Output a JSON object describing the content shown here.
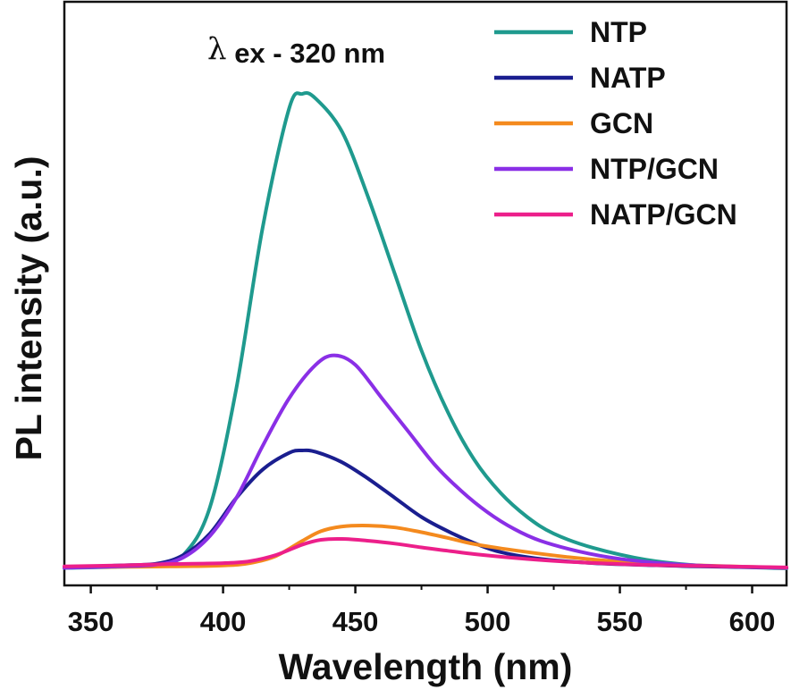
{
  "chart_data": {
    "type": "line",
    "title": "",
    "xlabel": "Wavelength (nm)",
    "ylabel": "PL intensity (a.u.)",
    "xlim": [
      340,
      613
    ],
    "ylim": [
      0,
      1.1
    ],
    "x_ticks": [
      "350",
      "400",
      "450",
      "500",
      "550",
      "600"
    ],
    "y_ticks_shown": false,
    "grid": false,
    "legend_position": "top-right",
    "annotation": {
      "symbol": "λ",
      "text": "ex - 320 nm"
    },
    "series": [
      {
        "name": "NTP",
        "color": "#1f9a8e",
        "x": [
          340,
          360,
          375,
          385,
          395,
          405,
          415,
          425,
          430,
          435,
          445,
          455,
          465,
          475,
          485,
          495,
          505,
          515,
          525,
          540,
          560,
          580,
          613
        ],
        "y": [
          0.003,
          0.005,
          0.009,
          0.03,
          0.13,
          0.38,
          0.72,
          0.97,
          1.0,
          0.99,
          0.92,
          0.78,
          0.62,
          0.46,
          0.33,
          0.23,
          0.16,
          0.11,
          0.075,
          0.045,
          0.02,
          0.008,
          0.002
        ]
      },
      {
        "name": "NATP",
        "color": "#1a1e8f",
        "x": [
          340,
          360,
          375,
          385,
          395,
          405,
          415,
          425,
          430,
          435,
          445,
          455,
          465,
          475,
          485,
          495,
          505,
          520,
          540,
          560,
          580,
          613
        ],
        "y": [
          0.004,
          0.008,
          0.012,
          0.03,
          0.075,
          0.15,
          0.21,
          0.245,
          0.25,
          0.247,
          0.225,
          0.19,
          0.15,
          0.11,
          0.08,
          0.055,
          0.036,
          0.022,
          0.013,
          0.009,
          0.006,
          0.003
        ]
      },
      {
        "name": "GCN",
        "color": "#f48a1e",
        "x": [
          340,
          360,
          380,
          400,
          410,
          420,
          430,
          437,
          445,
          455,
          465,
          475,
          485,
          495,
          510,
          530,
          550,
          570,
          613
        ],
        "y": [
          0.004,
          0.005,
          0.006,
          0.008,
          0.013,
          0.028,
          0.06,
          0.08,
          0.09,
          0.092,
          0.088,
          0.078,
          0.066,
          0.053,
          0.04,
          0.026,
          0.016,
          0.01,
          0.003
        ]
      },
      {
        "name": "NTP/GCN",
        "color": "#8a2fe6",
        "x": [
          340,
          360,
          375,
          385,
          395,
          405,
          415,
          425,
          435,
          442,
          450,
          460,
          470,
          480,
          490,
          500,
          510,
          520,
          535,
          550,
          570,
          590,
          613
        ],
        "y": [
          0.003,
          0.006,
          0.01,
          0.025,
          0.07,
          0.15,
          0.26,
          0.36,
          0.43,
          0.45,
          0.43,
          0.36,
          0.29,
          0.22,
          0.165,
          0.12,
          0.085,
          0.06,
          0.037,
          0.022,
          0.011,
          0.006,
          0.003
        ]
      },
      {
        "name": "NATP/GCN",
        "color": "#ec1f8a",
        "x": [
          340,
          360,
          380,
          400,
          410,
          420,
          430,
          437,
          445,
          455,
          465,
          475,
          485,
          495,
          510,
          530,
          550,
          570,
          613
        ],
        "y": [
          0.006,
          0.008,
          0.011,
          0.013,
          0.017,
          0.03,
          0.052,
          0.062,
          0.064,
          0.06,
          0.054,
          0.046,
          0.039,
          0.032,
          0.024,
          0.016,
          0.011,
          0.008,
          0.004
        ]
      }
    ]
  }
}
